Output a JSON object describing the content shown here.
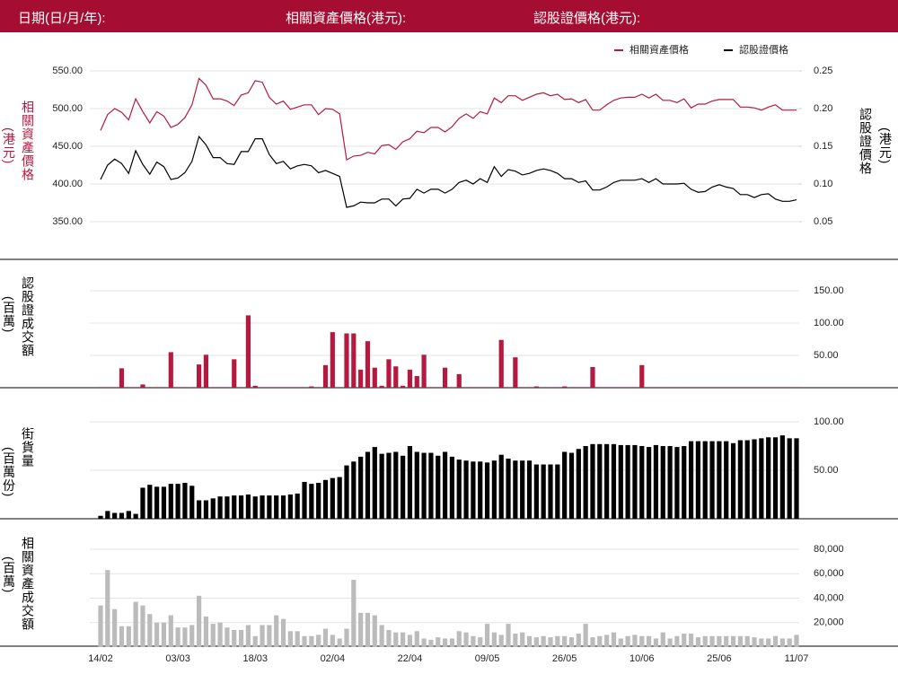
{
  "header": {
    "date_label": "日期(日/月/年):",
    "asset_label": "相關資產價格(港元):",
    "warrant_label": "認股證價格(港元):"
  },
  "chart_data": [
    {
      "type": "line",
      "ylabel": "相關資產價格",
      "yunit": "(港元)",
      "y2label": "認股證價格",
      "y2unit": "(港元)",
      "legend": "top-right",
      "grid": true,
      "ylim": [
        350,
        550
      ],
      "yticks": [
        {
          "value": 350,
          "label": "350.00"
        },
        {
          "value": 400,
          "label": "400.00"
        },
        {
          "value": 450,
          "label": "450.00"
        },
        {
          "value": 500,
          "label": "500.00"
        },
        {
          "value": 550,
          "label": "550.00"
        }
      ],
      "y2lim": [
        0.05,
        0.25
      ],
      "y2ticks": [
        0.05,
        {
          "value": 0.1,
          "label": "0.10"
        },
        0.15,
        {
          "value": 0.2,
          "label": "0.20"
        },
        0.25
      ],
      "series": [
        {
          "name": "相關資產價格",
          "color": "#b5193f",
          "values": [
            471,
            492,
            500,
            495,
            485,
            513,
            496,
            481,
            496,
            490,
            475,
            479,
            488,
            505,
            540,
            531,
            513,
            513,
            510,
            504,
            518,
            521,
            537,
            535,
            515,
            506,
            510,
            499,
            502,
            505,
            505,
            492,
            500,
            499,
            493,
            432,
            437,
            438,
            442,
            440,
            451,
            452,
            446,
            456,
            460,
            470,
            468,
            475,
            475,
            469,
            476,
            487,
            493,
            487,
            496,
            493,
            514,
            508,
            517,
            517,
            511,
            515,
            519,
            521,
            517,
            519,
            512,
            513,
            508,
            512,
            498,
            498,
            505,
            511,
            514,
            515,
            515,
            519,
            514,
            519,
            511,
            511,
            508,
            513,
            501,
            506,
            506,
            510,
            512,
            512,
            512,
            502,
            502,
            501,
            498,
            502,
            505,
            498,
            498,
            498
          ]
        },
        {
          "name": "認股證價格",
          "color": "#000000",
          "axis": "y2",
          "values": [
            0.106,
            0.125,
            0.133,
            0.127,
            0.114,
            0.144,
            0.126,
            0.113,
            0.129,
            0.123,
            0.106,
            0.108,
            0.115,
            0.13,
            0.163,
            0.152,
            0.135,
            0.135,
            0.127,
            0.126,
            0.143,
            0.143,
            0.16,
            0.16,
            0.139,
            0.127,
            0.13,
            0.12,
            0.124,
            0.126,
            0.124,
            0.115,
            0.118,
            0.114,
            0.11,
            0.069,
            0.071,
            0.076,
            0.075,
            0.075,
            0.08,
            0.08,
            0.071,
            0.08,
            0.081,
            0.093,
            0.088,
            0.093,
            0.093,
            0.088,
            0.093,
            0.102,
            0.105,
            0.1,
            0.107,
            0.102,
            0.123,
            0.11,
            0.119,
            0.117,
            0.112,
            0.114,
            0.118,
            0.12,
            0.118,
            0.114,
            0.107,
            0.107,
            0.102,
            0.104,
            0.092,
            0.092,
            0.096,
            0.102,
            0.105,
            0.105,
            0.105,
            0.107,
            0.102,
            0.107,
            0.1,
            0.1,
            0.1,
            0.101,
            0.093,
            0.089,
            0.09,
            0.096,
            0.099,
            0.096,
            0.094,
            0.086,
            0.086,
            0.082,
            0.086,
            0.087,
            0.08,
            0.077,
            0.077,
            0.079
          ]
        }
      ]
    },
    {
      "type": "bar",
      "ylabel": "認股證成交額",
      "yunit": "(百萬)",
      "color": "#b5193f",
      "grid": true,
      "ylim": [
        0,
        150
      ],
      "yticks": [
        {
          "value": 50,
          "label": "50.00"
        },
        {
          "value": 100,
          "label": "100.00"
        },
        {
          "value": 150,
          "label": "150.00"
        }
      ],
      "values": [
        1,
        1,
        1,
        30,
        1,
        1,
        5,
        1,
        1,
        1,
        55,
        1,
        1,
        1,
        36,
        51,
        1,
        1,
        1,
        44,
        1,
        112,
        3,
        1,
        1,
        1,
        1,
        1,
        1,
        1,
        2,
        1,
        35,
        86,
        1,
        84,
        84,
        28,
        72,
        31,
        3,
        44,
        33,
        3,
        28,
        18,
        51,
        1,
        1,
        31,
        1,
        21,
        1,
        1,
        1,
        1,
        1,
        74,
        1,
        47,
        1,
        1,
        2,
        1,
        1,
        1,
        2,
        1,
        1,
        1,
        32,
        1,
        1,
        1,
        1,
        1,
        1,
        35,
        1,
        1,
        1,
        1,
        1,
        1,
        1,
        1,
        1,
        1,
        1,
        1,
        1,
        1,
        1,
        1,
        1,
        1,
        1,
        1,
        1,
        1
      ]
    },
    {
      "type": "bar",
      "ylabel": "街貨量",
      "yunit": "(百萬份)",
      "color": "#000000",
      "grid": true,
      "ylim": [
        0,
        100
      ],
      "yticks": [
        {
          "value": 50,
          "label": "50.00"
        },
        {
          "value": 100,
          "label": "100.00"
        }
      ],
      "values": [
        3,
        8,
        6,
        6,
        8,
        5,
        32,
        35,
        33,
        33,
        36,
        36,
        37,
        34,
        19,
        19,
        21,
        23,
        23,
        24,
        24,
        25,
        23,
        24,
        24,
        24,
        24,
        25,
        26,
        38,
        36,
        37,
        40,
        42,
        43,
        55,
        59,
        64,
        69,
        74,
        67,
        68,
        69,
        65,
        75,
        69,
        68,
        68,
        65,
        69,
        64,
        61,
        60,
        59,
        59,
        58,
        60,
        66,
        62,
        60,
        60,
        60,
        56,
        56,
        56,
        56,
        69,
        68,
        72,
        75,
        77,
        77,
        77,
        77,
        76,
        76,
        76,
        75,
        74,
        76,
        75,
        75,
        74,
        75,
        80,
        80,
        80,
        80,
        80,
        80,
        78,
        81,
        81,
        82,
        83,
        84,
        84,
        86,
        83,
        83
      ]
    },
    {
      "type": "bar",
      "ylabel": "相關資產成交額",
      "yunit": "(百萬)",
      "color": "#bbbbbb",
      "grid": true,
      "ylim": [
        0,
        80000
      ],
      "yticks": [
        {
          "value": 20000,
          "label": "20,000"
        },
        {
          "value": 40000,
          "label": "40,000"
        },
        {
          "value": 60000,
          "label": "60,000"
        },
        {
          "value": 80000,
          "label": "80,000"
        }
      ],
      "values": [
        34000,
        63000,
        31000,
        17000,
        17000,
        37000,
        34000,
        27000,
        20000,
        20000,
        26000,
        16000,
        16000,
        18000,
        42000,
        25000,
        19000,
        20000,
        16000,
        14000,
        14000,
        18000,
        9000,
        18000,
        18000,
        26000,
        23000,
        13000,
        13000,
        9000,
        9000,
        10000,
        15000,
        10000,
        7000,
        15000,
        55000,
        28000,
        28000,
        26000,
        18000,
        14000,
        12000,
        12000,
        10000,
        13000,
        7000,
        6000,
        8000,
        7000,
        7000,
        13000,
        12000,
        9000,
        8000,
        19000,
        12000,
        10000,
        19000,
        11000,
        12000,
        9000,
        8000,
        9000,
        8000,
        9000,
        9000,
        8000,
        11000,
        19000,
        8000,
        9000,
        10000,
        12000,
        7000,
        9000,
        10000,
        9000,
        9000,
        7000,
        12000,
        7000,
        9000,
        11000,
        11000,
        8000,
        9000,
        9000,
        9000,
        9000,
        9000,
        9000,
        9000,
        8000,
        7000,
        7000,
        9000,
        7000,
        7000,
        10000
      ],
      "categories": [
        "14/02",
        null,
        null,
        null,
        null,
        null,
        null,
        null,
        null,
        null,
        null,
        "03/03",
        null,
        null,
        null,
        null,
        null,
        null,
        null,
        null,
        null,
        null,
        "18/03",
        null,
        null,
        null,
        null,
        null,
        null,
        null,
        null,
        null,
        null,
        "02/04",
        null,
        null,
        null,
        null,
        null,
        null,
        null,
        null,
        null,
        null,
        "22/04",
        null,
        null,
        null,
        null,
        null,
        null,
        null,
        null,
        null,
        null,
        "09/05",
        null,
        null,
        null,
        null,
        null,
        null,
        null,
        null,
        null,
        null,
        "26/05",
        null,
        null,
        null,
        null,
        null,
        null,
        null,
        null,
        null,
        null,
        "10/06",
        null,
        null,
        null,
        null,
        null,
        null,
        null,
        null,
        null,
        null,
        "25/06",
        null,
        null,
        null,
        null,
        null,
        null,
        null,
        null,
        null,
        null,
        "11/07"
      ]
    }
  ]
}
